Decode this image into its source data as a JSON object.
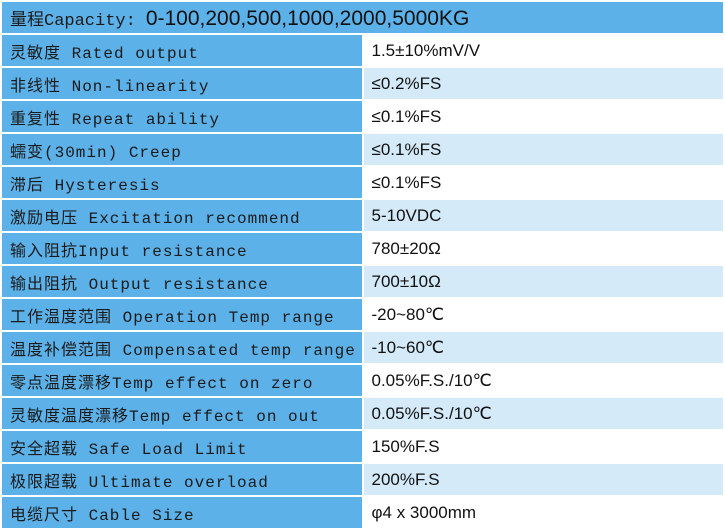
{
  "header": {
    "label": "量程Capacity:",
    "value": "0-100,200,500,1000,2000,5000KG"
  },
  "rows": [
    [
      "灵敏度 Rated output",
      "1.5±10%mV/V"
    ],
    [
      "非线性 Non-linearity",
      "≤0.2%FS"
    ],
    [
      "重复性 Repeat ability",
      "≤0.1%FS"
    ],
    [
      "蠕变(30min) Creep",
      "≤0.1%FS"
    ],
    [
      "滞后 Hysteresis",
      "≤0.1%FS"
    ],
    [
      "激励电压 Excitation recommend",
      "5-10VDC"
    ],
    [
      "输入阻抗Input resistance",
      "780±20Ω"
    ],
    [
      "输出阻抗 Output resistance",
      "700±10Ω"
    ],
    [
      "工作温度范围 Operation Temp range",
      "-20~80℃"
    ],
    [
      "温度补偿范围 Compensated temp range",
      "-10~60℃"
    ],
    [
      "零点温度漂移Temp effect on zero",
      "0.05%F.S./10℃"
    ],
    [
      "灵敏度温度漂移Temp effect on out",
      "0.05%F.S./10℃"
    ],
    [
      "安全超载 Safe Load Limit",
      "150%F.S"
    ],
    [
      "极限超载 Ultimate overload",
      "200%F.S"
    ],
    [
      "电缆尺寸 Cable Size",
      "φ4 x 3000mm"
    ]
  ]
}
